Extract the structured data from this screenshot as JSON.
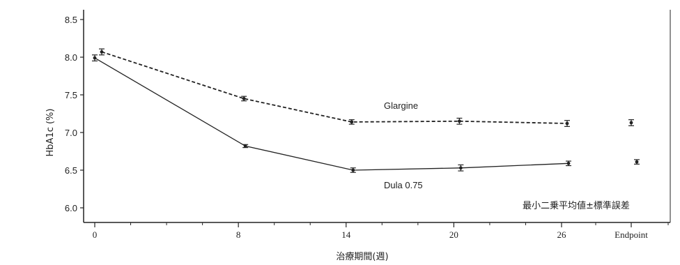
{
  "chart_data": {
    "type": "line",
    "title": "",
    "xlabel": "治療期間(週)",
    "ylabel": "HbA1c (%)",
    "ylim": [
      6.0,
      8.5
    ],
    "yticks": [
      "6.0",
      "6.5",
      "7.0",
      "7.5",
      "8.0",
      "8.5"
    ],
    "xticks": [
      "0",
      "8",
      "14",
      "20",
      "26",
      "Endpoint"
    ],
    "grid": false,
    "note": "最小二乗平均値±標準誤差",
    "series": [
      {
        "name": "Glargine",
        "style": "dashed",
        "x": [
          0,
          8,
          14,
          20,
          26
        ],
        "y": [
          8.07,
          7.45,
          7.14,
          7.15,
          7.12
        ],
        "err": [
          0.04,
          0.03,
          0.03,
          0.04,
          0.04
        ],
        "endpoint": {
          "y": 7.13,
          "err": 0.04
        }
      },
      {
        "name": "Dula 0.75",
        "style": "solid",
        "x": [
          0,
          8,
          14,
          20,
          26
        ],
        "y": [
          7.99,
          6.82,
          6.5,
          6.53,
          6.59
        ],
        "err": [
          0.04,
          0.02,
          0.03,
          0.04,
          0.03
        ],
        "endpoint": {
          "y": 6.61,
          "err": 0.03
        }
      }
    ]
  }
}
